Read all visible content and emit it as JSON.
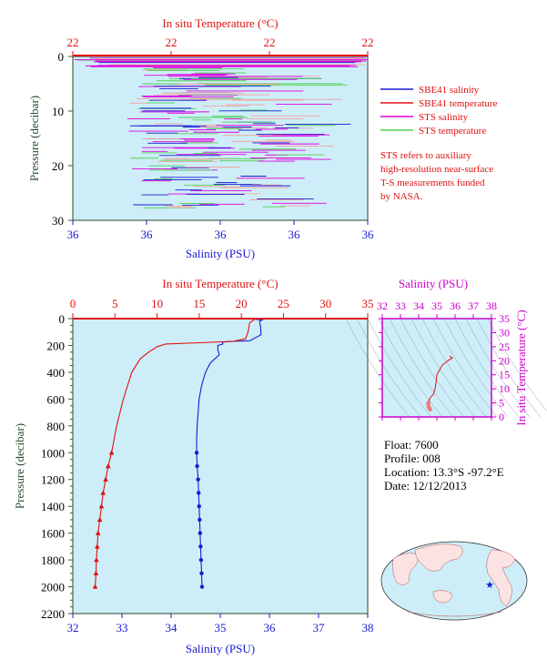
{
  "colors": {
    "plot_bg": "#cdeef8",
    "salinity": "#1a1ad0",
    "temperature": "#e01010",
    "sts_salinity": "#e000e0",
    "sts_temperature": "#50d050",
    "pressure_axis": "#3a5a3a",
    "ts_axis": "#cc00cc",
    "text": "#000000"
  },
  "chart_data": [
    {
      "type": "line",
      "title": "",
      "top_axis_label": "In situ Temperature (°C)",
      "top_ticks": [
        "22",
        "22",
        "22",
        "22"
      ],
      "xlabel": "Salinity (PSU)",
      "x_ticks": [
        "36",
        "36",
        "36",
        "36",
        "36"
      ],
      "ylabel": "Pressure (decibar)",
      "y_ticks": [
        0,
        10,
        20,
        30
      ],
      "ylim": [
        30,
        0
      ],
      "legend": {
        "placement": "right",
        "entries": [
          {
            "name": "SBE41 salinity",
            "color": "#1a1ad0"
          },
          {
            "name": "SBE41 temperature",
            "color": "#e01010"
          },
          {
            "name": "STS salinity",
            "color": "#e000e0"
          },
          {
            "name": "STS temperature",
            "color": "#50d050"
          }
        ]
      },
      "note": [
        "STS refers to auxiliary",
        "high-resolution near-surface",
        "T-S measurements funded",
        "by NASA."
      ]
    },
    {
      "type": "line",
      "top_axis_label": "In situ Temperature (°C)",
      "top_ticks": [
        "0",
        "5",
        "10",
        "15",
        "20",
        "25",
        "30",
        "35"
      ],
      "xlabel": "Salinity (PSU)",
      "x_ticks": [
        "32",
        "33",
        "34",
        "35",
        "36",
        "37",
        "38"
      ],
      "ylabel": "Pressure (decibar)",
      "y_ticks": [
        "0",
        "200",
        "400",
        "600",
        "800",
        "1000",
        "1200",
        "1400",
        "1600",
        "1800",
        "2000",
        "2200"
      ],
      "xlim_salinity": [
        32,
        38
      ],
      "xlim_temperature": [
        0,
        35
      ],
      "ylim": [
        2200,
        0
      ],
      "series": [
        {
          "name": "Salinity",
          "axis": "salinity",
          "points": [
            [
              35.7,
              0
            ],
            [
              35.72,
              5
            ],
            [
              35.85,
              10
            ],
            [
              35.8,
              20
            ],
            [
              35.82,
              60
            ],
            [
              35.83,
              120
            ],
            [
              35.6,
              165
            ],
            [
              35.2,
              170
            ],
            [
              35.05,
              175
            ],
            [
              35.05,
              190
            ],
            [
              34.95,
              200
            ],
            [
              34.95,
              230
            ],
            [
              34.98,
              270
            ],
            [
              34.8,
              330
            ],
            [
              34.7,
              400
            ],
            [
              34.62,
              500
            ],
            [
              34.57,
              600
            ],
            [
              34.55,
              700
            ],
            [
              34.53,
              800
            ],
            [
              34.52,
              900
            ],
            [
              34.52,
              1000
            ],
            [
              34.53,
              1100
            ],
            [
              34.55,
              1200
            ],
            [
              34.56,
              1300
            ],
            [
              34.57,
              1400
            ],
            [
              34.58,
              1500
            ],
            [
              34.59,
              1600
            ],
            [
              34.6,
              1700
            ],
            [
              34.61,
              1800
            ],
            [
              34.62,
              1900
            ],
            [
              34.63,
              2000
            ]
          ],
          "markers_from": 1000
        },
        {
          "name": "Temperature",
          "axis": "temperature",
          "points": [
            [
              21.6,
              0
            ],
            [
              21.5,
              10
            ],
            [
              21.0,
              30
            ],
            [
              20.8,
              100
            ],
            [
              20.5,
              150
            ],
            [
              19.0,
              170
            ],
            [
              15.0,
              180
            ],
            [
              11.0,
              190
            ],
            [
              10.0,
              210
            ],
            [
              9.0,
              250
            ],
            [
              8.0,
              300
            ],
            [
              7.5,
              350
            ],
            [
              7.0,
              400
            ],
            [
              6.5,
              500
            ],
            [
              6.0,
              600
            ],
            [
              5.6,
              700
            ],
            [
              5.2,
              800
            ],
            [
              4.9,
              900
            ],
            [
              4.6,
              1000
            ],
            [
              4.2,
              1100
            ],
            [
              3.9,
              1200
            ],
            [
              3.6,
              1300
            ],
            [
              3.4,
              1400
            ],
            [
              3.2,
              1500
            ],
            [
              3.0,
              1600
            ],
            [
              2.9,
              1700
            ],
            [
              2.8,
              1800
            ],
            [
              2.75,
              1900
            ],
            [
              2.65,
              2000
            ]
          ],
          "markers_from": 1000
        }
      ]
    },
    {
      "type": "scatter",
      "top_axis_label": "Salinity (PSU)",
      "x_ticks": [
        "32",
        "33",
        "34",
        "35",
        "36",
        "37",
        "38"
      ],
      "ylabel": "In situ Temperature (°C)",
      "y_ticks": [
        "0",
        "5",
        "10",
        "15",
        "20",
        "25",
        "30",
        "35"
      ],
      "xlim": [
        32,
        38
      ],
      "ylim": [
        0,
        35
      ],
      "points": [
        [
          35.7,
          21.6
        ],
        [
          35.85,
          21.0
        ],
        [
          35.6,
          20.0
        ],
        [
          35.3,
          18.5
        ],
        [
          35.0,
          15.0
        ],
        [
          34.95,
          12.0
        ],
        [
          34.9,
          10.0
        ],
        [
          34.8,
          8.0
        ],
        [
          34.65,
          7.0
        ],
        [
          34.58,
          6.0
        ],
        [
          34.53,
          5.0
        ],
        [
          34.53,
          4.2
        ],
        [
          34.56,
          3.5
        ],
        [
          34.6,
          3.0
        ],
        [
          34.63,
          2.65
        ]
      ]
    }
  ],
  "float_info": {
    "float": "Float: 7600",
    "profile": "Profile: 008",
    "location": "Location: 13.3°S -97.2°E",
    "date": "Date: 12/12/2013"
  }
}
